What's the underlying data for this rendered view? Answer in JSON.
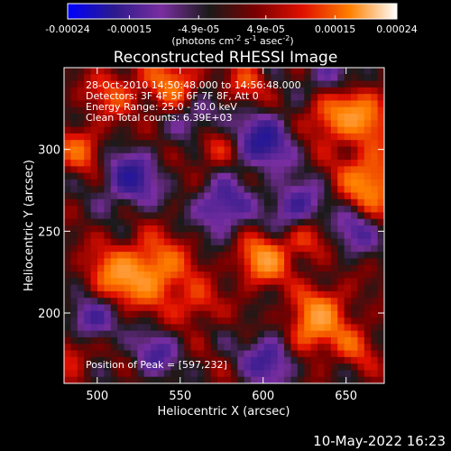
{
  "colorbar": {
    "tick_labels": [
      "-0.00024",
      "-0.00015",
      "-4.9e-05",
      "4.9e-05",
      "0.00015",
      "0.00024"
    ],
    "tick_values": [
      -0.00024,
      -0.00015,
      -4.9e-05,
      4.9e-05,
      0.00015,
      0.00024
    ],
    "range": [
      -0.00024,
      0.00024
    ],
    "units_prefix": "(photons cm",
    "units_exp1": "-2",
    "units_mid": " s",
    "units_exp2": "-1",
    "units_suffix": " asec",
    "units_exp3": "-2",
    "units_close": ")",
    "colors": [
      "#0000ff",
      "#2c1a8c",
      "#7a2ea0",
      "#1a1a1a",
      "#7a0000",
      "#e01000",
      "#ff8000",
      "#ffffff"
    ]
  },
  "chart_data": {
    "type": "heatmap",
    "title": "Reconstructed RHESSI Image",
    "xlabel": "Heliocentric X (arcsec)",
    "ylabel": "Heliocentric Y (arcsec)",
    "xlim": [
      480,
      673
    ],
    "ylim": [
      157,
      350
    ],
    "x_ticks": [
      500,
      550,
      600,
      650
    ],
    "y_ticks": [
      200,
      250,
      300
    ],
    "peak": [
      597,
      232
    ],
    "annotations": [
      "28-Oct-2010 14:50:48.000 to 14:56:48.000",
      "Detectors: 3F 4F 5F 6F 7F 8F, Att 0",
      "Energy Range: 25.0 - 50.0 keV",
      "Clean     Total counts: 6.39E+03"
    ],
    "peak_label": "Position of Peak = [597,232]",
    "hot_spots": [
      {
        "x": 600,
        "y": 232,
        "amp": 1.0,
        "r": 10
      },
      {
        "x": 535,
        "y": 225,
        "amp": 0.9,
        "r": 14
      },
      {
        "x": 510,
        "y": 222,
        "amp": 0.75,
        "r": 12
      },
      {
        "x": 665,
        "y": 280,
        "amp": 0.95,
        "r": 13
      },
      {
        "x": 660,
        "y": 320,
        "amp": 0.8,
        "r": 12
      },
      {
        "x": 640,
        "y": 320,
        "amp": 0.65,
        "r": 10
      },
      {
        "x": 635,
        "y": 200,
        "amp": 0.85,
        "r": 11
      },
      {
        "x": 625,
        "y": 185,
        "amp": 0.55,
        "r": 10
      },
      {
        "x": 655,
        "y": 180,
        "amp": 0.5,
        "r": 9
      },
      {
        "x": 490,
        "y": 300,
        "amp": 0.6,
        "r": 10
      },
      {
        "x": 545,
        "y": 340,
        "amp": 0.7,
        "r": 12
      },
      {
        "x": 510,
        "y": 335,
        "amp": 0.55,
        "r": 10
      },
      {
        "x": 570,
        "y": 300,
        "amp": 0.45,
        "r": 9
      },
      {
        "x": 485,
        "y": 180,
        "amp": 0.6,
        "r": 10
      },
      {
        "x": 560,
        "y": 205,
        "amp": 0.45,
        "r": 9
      },
      {
        "x": 625,
        "y": 245,
        "amp": 0.55,
        "r": 9
      },
      {
        "x": 590,
        "y": 340,
        "amp": 0.45,
        "r": 9
      }
    ],
    "cold_spots": [
      {
        "x": 600,
        "y": 305,
        "amp": 0.9,
        "r": 12
      },
      {
        "x": 520,
        "y": 282,
        "amp": 0.85,
        "r": 12
      },
      {
        "x": 575,
        "y": 265,
        "amp": 0.8,
        "r": 11
      },
      {
        "x": 620,
        "y": 265,
        "amp": 0.75,
        "r": 11
      },
      {
        "x": 495,
        "y": 195,
        "amp": 0.85,
        "r": 11
      },
      {
        "x": 605,
        "y": 172,
        "amp": 0.8,
        "r": 11
      },
      {
        "x": 535,
        "y": 175,
        "amp": 0.6,
        "r": 10
      },
      {
        "x": 560,
        "y": 320,
        "amp": 0.55,
        "r": 10
      },
      {
        "x": 655,
        "y": 250,
        "amp": 0.6,
        "r": 10
      },
      {
        "x": 640,
        "y": 345,
        "amp": 0.55,
        "r": 9
      }
    ]
  },
  "footer": {
    "timestamp": "10-May-2022 16:23"
  }
}
